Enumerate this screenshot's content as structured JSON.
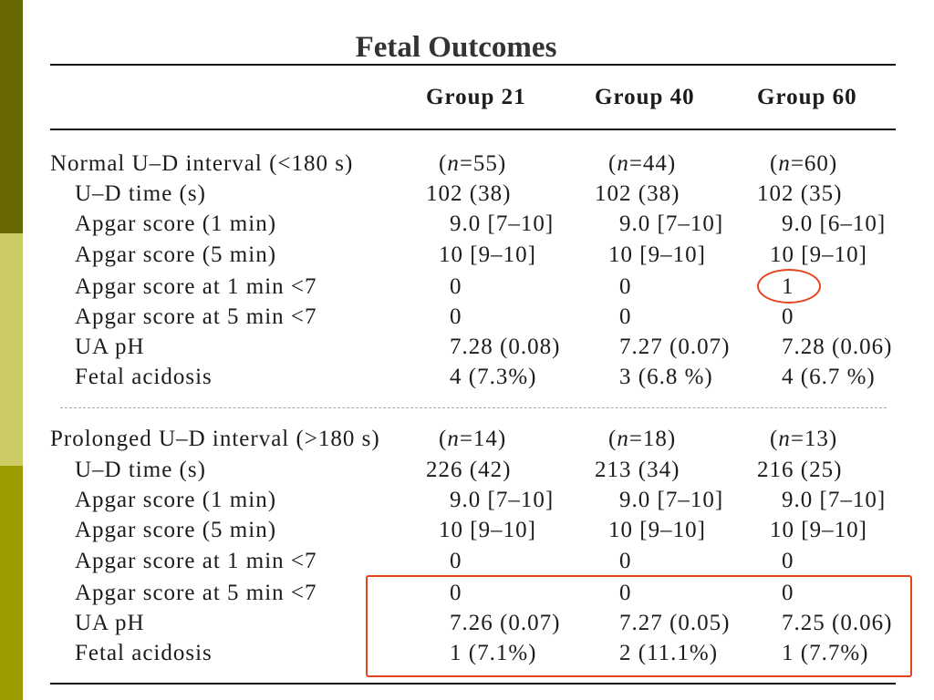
{
  "title": "Fetal Outcomes",
  "columns": [
    "Group 21",
    "Group 40",
    "Group 60"
  ],
  "sections": [
    {
      "label": "Normal U–D interval (<180 s)",
      "n": [
        {
          "pre": "(",
          "var": "n",
          "post": "=55)"
        },
        {
          "pre": "(",
          "var": "n",
          "post": "=44)"
        },
        {
          "pre": "(",
          "var": "n",
          "post": "=60)"
        }
      ],
      "rows": [
        {
          "label": "U–D time (s)",
          "values": [
            "102 (38)",
            "102 (38)",
            "102 (35)"
          ]
        },
        {
          "label": "Apgar score (1 min)",
          "values": [
            "9.0 [7–10]",
            "9.0 [7–10]",
            "9.0 [6–10]"
          ]
        },
        {
          "label": "Apgar score (5 min)",
          "values": [
            "10 [9–10]",
            "10 [9–10]",
            "10 [9–10]"
          ]
        },
        {
          "label": "Apgar score at 1 min <7",
          "values": [
            "0",
            "0",
            "1"
          ]
        },
        {
          "label": "Apgar score at 5 min <7",
          "values": [
            "0",
            "0",
            "0"
          ]
        },
        {
          "label": "UA pH",
          "values": [
            "7.28 (0.08)",
            "7.27 (0.07)",
            "7.28 (0.06)"
          ]
        },
        {
          "label": "Fetal acidosis",
          "values": [
            "4 (7.3%)",
            "3 (6.8 %)",
            "4 (6.7 %)"
          ]
        }
      ]
    },
    {
      "label": "Prolonged U–D interval (>180 s)",
      "n": [
        {
          "pre": "(",
          "var": "n",
          "post": "=14)"
        },
        {
          "pre": "(",
          "var": "n",
          "post": "=18)"
        },
        {
          "pre": "(",
          "var": "n",
          "post": "=13)"
        }
      ],
      "rows": [
        {
          "label": "U–D time (s)",
          "values": [
            "226 (42)",
            "213 (34)",
            "216 (25)"
          ]
        },
        {
          "label": "Apgar score (1 min)",
          "values": [
            "9.0 [7–10]",
            "9.0 [7–10]",
            "9.0 [7–10]"
          ]
        },
        {
          "label": "Apgar score (5 min)",
          "values": [
            "10 [9–10]",
            "10 [9–10]",
            "10 [9–10]"
          ]
        },
        {
          "label": "Apgar score at 1 min <7",
          "values": [
            "0",
            "0",
            "0"
          ]
        },
        {
          "label": "Apgar score at 5 min <7",
          "values": [
            "0",
            "0",
            "0"
          ]
        },
        {
          "label": "UA pH",
          "values": [
            "7.26 (0.07)",
            "7.27 (0.05)",
            "7.25 (0.06)"
          ]
        },
        {
          "label": "Fetal acidosis",
          "values": [
            "1 (7.1%)",
            "2 (11.1%)",
            "1 (7.7%)"
          ]
        }
      ]
    }
  ],
  "colors": {
    "annotation": "#e4431d",
    "sidebar_top": "#686800",
    "sidebar_middle": "#cccc66",
    "sidebar_bottom": "#9c9c00",
    "text": "#1c1c1c"
  }
}
